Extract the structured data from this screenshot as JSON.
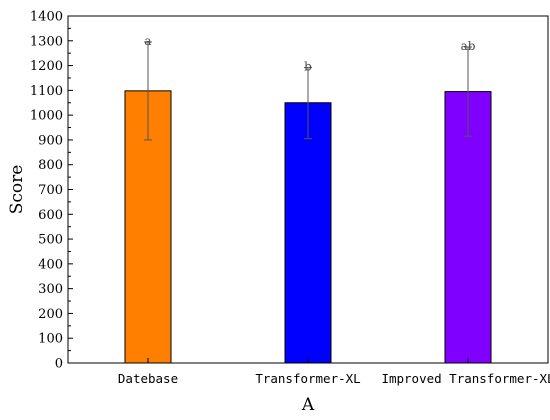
{
  "chart_data": {
    "type": "bar",
    "categories": [
      "Datebase",
      "Transformer-XL",
      "Improved Transformer-XL"
    ],
    "values": [
      1098,
      1050,
      1095
    ],
    "error_low": [
      900,
      905,
      915
    ],
    "error_high": [
      1295,
      1192,
      1275
    ],
    "significance_labels": [
      "a",
      "b",
      "ab"
    ],
    "colors": [
      "#ff8000",
      "#0000ff",
      "#8000ff"
    ],
    "xlabel": "A",
    "ylabel": "Score",
    "ylim": [
      0,
      1400
    ],
    "yticks": [
      0,
      100,
      200,
      300,
      400,
      500,
      600,
      700,
      800,
      900,
      1000,
      1100,
      1200,
      1300,
      1400
    ],
    "grid": false,
    "legend": "none"
  }
}
